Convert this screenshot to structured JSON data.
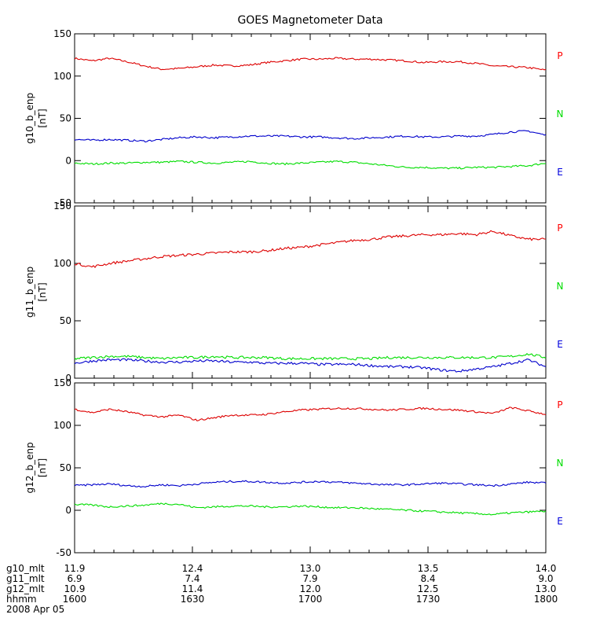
{
  "chart_data": {
    "type": "line",
    "title": "GOES Magnetometer Data",
    "x_ticks": [
      "1600",
      "1630",
      "1700",
      "1730",
      "1800"
    ],
    "x_range": [
      "1600",
      "1800"
    ],
    "series_colors": {
      "P": "#ff0000",
      "N": "#00dd00",
      "E": "#0000dd"
    },
    "panels": [
      {
        "ylabel": "g10_b_enp",
        "unit": "[nT]",
        "ylim": [
          -50,
          150
        ],
        "yticks": [
          -50,
          0,
          50,
          100,
          150
        ],
        "legend": [
          "P",
          "N",
          "E"
        ],
        "series": [
          {
            "name": "P",
            "color": "#dd0000",
            "values": [
              121,
              118,
              121,
              117,
              112,
              108,
              109,
              111,
              113,
              112,
              113,
              116,
              118,
              120,
              120,
              121,
              120,
              120,
              119,
              118,
              116,
              117,
              117,
              115,
              112,
              111,
              110,
              107
            ]
          },
          {
            "name": "N",
            "color": "#00dd00",
            "values": [
              -3,
              -4,
              -3,
              -3,
              -2,
              -2,
              -1,
              -2,
              -3,
              -2,
              -1,
              -3,
              -4,
              -3,
              -2,
              -1,
              -2,
              -4,
              -6,
              -8,
              -8,
              -9,
              -9,
              -8,
              -8,
              -7,
              -6,
              -3
            ]
          },
          {
            "name": "E",
            "color": "#0000cc",
            "values": [
              25,
              24,
              25,
              24,
              23,
              25,
              27,
              28,
              27,
              28,
              29,
              29,
              29,
              28,
              28,
              27,
              26,
              27,
              28,
              29,
              28,
              28,
              29,
              29,
              31,
              34,
              35,
              30
            ]
          }
        ]
      },
      {
        "ylabel": "g11_b_enp",
        "unit": "[nT]",
        "ylim": [
          0,
          150
        ],
        "yticks": [
          0,
          50,
          100,
          150
        ],
        "legend": [
          "P",
          "N",
          "E"
        ],
        "series": [
          {
            "name": "P",
            "color": "#dd0000",
            "values": [
              100,
              97,
              100,
              102,
              104,
              106,
              107,
              108,
              109,
              110,
              110,
              111,
              113,
              114,
              116,
              118,
              120,
              121,
              123,
              124,
              125,
              125,
              126,
              125,
              128,
              124,
              121,
              121
            ]
          },
          {
            "name": "N",
            "color": "#00dd00",
            "values": [
              17,
              18,
              19,
              19,
              18,
              17,
              18,
              18,
              19,
              18,
              18,
              18,
              17,
              17,
              17,
              17,
              17,
              17,
              18,
              18,
              18,
              18,
              18,
              18,
              18,
              19,
              21,
              18
            ]
          },
          {
            "name": "E",
            "color": "#0000cc",
            "values": [
              13,
              15,
              16,
              16,
              15,
              14,
              14,
              15,
              15,
              14,
              14,
              13,
              13,
              13,
              12,
              12,
              12,
              11,
              10,
              10,
              9,
              7,
              6,
              8,
              10,
              13,
              16,
              10
            ]
          }
        ]
      },
      {
        "ylabel": "g12_b_enp",
        "unit": "[nT]",
        "ylim": [
          -50,
          150
        ],
        "yticks": [
          -50,
          0,
          50,
          100,
          150
        ],
        "legend": [
          "P",
          "N",
          "E"
        ],
        "series": [
          {
            "name": "P",
            "color": "#dd0000",
            "values": [
              119,
              115,
              119,
              116,
              112,
              110,
              112,
              106,
              109,
              112,
              112,
              113,
              116,
              118,
              119,
              120,
              120,
              119,
              118,
              119,
              120,
              119,
              118,
              116,
              114,
              121,
              117,
              113
            ]
          },
          {
            "name": "N",
            "color": "#00dd00",
            "values": [
              7,
              6,
              4,
              5,
              6,
              8,
              7,
              3,
              4,
              5,
              5,
              4,
              4,
              5,
              4,
              3,
              3,
              2,
              1,
              0,
              -1,
              -2,
              -3,
              -4,
              -5,
              -3,
              -2,
              -1
            ]
          },
          {
            "name": "E",
            "color": "#0000cc",
            "values": [
              29,
              30,
              31,
              29,
              28,
              30,
              29,
              31,
              33,
              34,
              34,
              33,
              32,
              33,
              34,
              33,
              32,
              31,
              30,
              30,
              31,
              32,
              31,
              30,
              29,
              31,
              33,
              32
            ]
          }
        ]
      }
    ],
    "bottom_axis": {
      "rows": [
        {
          "label": "g10_mlt",
          "values": [
            "11.9",
            "12.4",
            "13.0",
            "13.5",
            "14.0"
          ]
        },
        {
          "label": "g11_mlt",
          "values": [
            "6.9",
            "7.4",
            "7.9",
            "8.4",
            "9.0"
          ]
        },
        {
          "label": "g12_mlt",
          "values": [
            "10.9",
            "11.4",
            "12.0",
            "12.5",
            "13.0"
          ]
        },
        {
          "label": "hhmm",
          "values": [
            "1600",
            "1630",
            "1700",
            "1730",
            "1800"
          ]
        }
      ],
      "date": "2008 Apr 05"
    }
  }
}
